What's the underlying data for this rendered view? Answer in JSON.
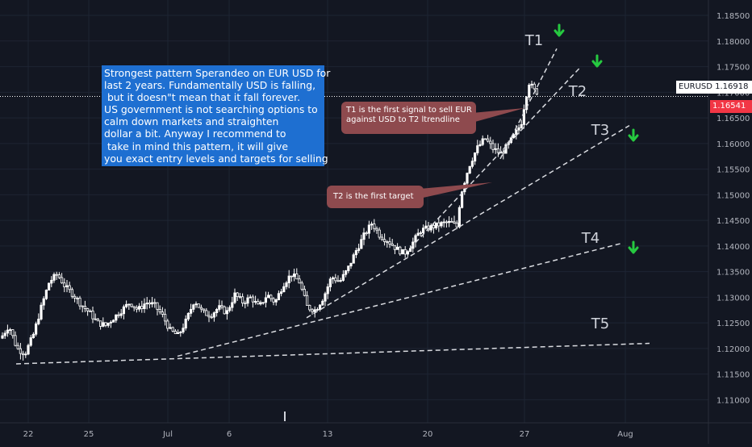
{
  "chart_data": {
    "type": "candlestick",
    "symbol": "EURUSD",
    "current_price": "1.16918",
    "red_price_label": "1.16541",
    "y_axis": {
      "ticks": [
        "1.18500",
        "1.18000",
        "1.17500",
        "1.17000",
        "1.16500",
        "1.16000",
        "1.15500",
        "1.15000",
        "1.14500",
        "1.14000",
        "1.13500",
        "1.13000",
        "1.12500",
        "1.12000",
        "1.11500",
        "1.11000"
      ],
      "range": [
        1.1055,
        1.188
      ]
    },
    "x_axis": {
      "ticks": [
        "22",
        "25",
        "Jul",
        "6",
        "13",
        "20",
        "27",
        "Aug"
      ]
    },
    "price_path": [
      [
        0,
        1.122
      ],
      [
        10,
        1.1245
      ],
      [
        20,
        1.12
      ],
      [
        30,
        1.119
      ],
      [
        40,
        1.1225
      ],
      [
        50,
        1.128
      ],
      [
        60,
        1.133
      ],
      [
        70,
        1.1345
      ],
      [
        80,
        1.132
      ],
      [
        90,
        1.1305
      ],
      [
        100,
        1.1285
      ],
      [
        110,
        1.127
      ],
      [
        120,
        1.125
      ],
      [
        130,
        1.1245
      ],
      [
        140,
        1.126
      ],
      [
        150,
        1.1275
      ],
      [
        160,
        1.129
      ],
      [
        170,
        1.1275
      ],
      [
        180,
        1.129
      ],
      [
        190,
        1.1285
      ],
      [
        200,
        1.1265
      ],
      [
        210,
        1.1235
      ],
      [
        220,
        1.1225
      ],
      [
        230,
        1.1255
      ],
      [
        240,
        1.1295
      ],
      [
        250,
        1.127
      ],
      [
        260,
        1.1265
      ],
      [
        270,
        1.128
      ],
      [
        280,
        1.127
      ],
      [
        290,
        1.1305
      ],
      [
        300,
        1.129
      ],
      [
        310,
        1.13
      ],
      [
        320,
        1.128
      ],
      [
        330,
        1.1305
      ],
      [
        340,
        1.129
      ],
      [
        350,
        1.1325
      ],
      [
        360,
        1.1345
      ],
      [
        370,
        1.133
      ],
      [
        380,
        1.128
      ],
      [
        390,
        1.1275
      ],
      [
        400,
        1.13
      ],
      [
        410,
        1.134
      ],
      [
        420,
        1.133
      ],
      [
        430,
        1.1355
      ],
      [
        440,
        1.139
      ],
      [
        450,
        1.142
      ],
      [
        460,
        1.1445
      ],
      [
        470,
        1.142
      ],
      [
        480,
        1.141
      ],
      [
        490,
        1.1395
      ],
      [
        500,
        1.1385
      ],
      [
        510,
        1.1405
      ],
      [
        520,
        1.143
      ],
      [
        530,
        1.1435
      ],
      [
        540,
        1.144
      ],
      [
        550,
        1.1445
      ],
      [
        560,
        1.1445
      ],
      [
        565,
        1.1435
      ],
      [
        570,
        1.15
      ],
      [
        580,
        1.1555
      ],
      [
        590,
        1.159
      ],
      [
        600,
        1.161
      ],
      [
        610,
        1.159
      ],
      [
        620,
        1.158
      ],
      [
        630,
        1.16
      ],
      [
        640,
        1.1625
      ],
      [
        645,
        1.164
      ],
      [
        650,
        1.1685
      ],
      [
        655,
        1.172
      ],
      [
        660,
        1.1705
      ],
      [
        665,
        1.17
      ]
    ],
    "trendlines": [
      {
        "label": "T1",
        "from": [
          620,
          1.157
        ],
        "to": [
          690,
          1.1785
        ]
      },
      {
        "label": "T2",
        "from": [
          508,
          1.1395
        ],
        "to": [
          720,
          1.175
        ]
      },
      {
        "label": "T3",
        "from": [
          380,
          1.126
        ],
        "to": [
          780,
          1.1635
        ]
      },
      {
        "label": "T4",
        "from": [
          220,
          1.1185
        ],
        "to": [
          770,
          1.1405
        ]
      },
      {
        "label": "T5",
        "from": [
          20,
          1.117
        ],
        "to": [
          805,
          1.121
        ]
      }
    ],
    "target_labels": [
      {
        "text": "T1",
        "x": 662,
        "y": 48
      },
      {
        "text": "T2",
        "x": 716,
        "y": 111
      },
      {
        "text": "T3",
        "x": 744,
        "y": 159
      },
      {
        "text": "T4",
        "x": 732,
        "y": 293
      },
      {
        "text": "T5",
        "x": 744,
        "y": 399
      }
    ],
    "down_arrows": [
      [
        693,
        38
      ],
      [
        740,
        76
      ],
      [
        785,
        168
      ],
      [
        785,
        307
      ]
    ],
    "annotations": {
      "main": "Strongest pattern Sperandeo on EUR USD for\nlast 2 years. Fundamentally USD is falling,\n but it doesn\"t mean that it fall forever.\nUS government is not searching options to\ncalm down markets and straighten\ndollar a bit. Anyway I recommend to\n take in mind this pattern, it will give\nyou exact entry levels and targets for selling",
      "t1_callout": "T1 is the first signal to sell EUR\nagainst USD to T2 ltrendline",
      "t2_callout": "T2 is the first target"
    }
  },
  "colors": {
    "background": "#131722",
    "grid": "#1e2433",
    "candle_up": "#ffffff",
    "candle_down": "#ffffff",
    "trendline": "#d9dbe0",
    "arrow": "#26c940",
    "note_blue": "#1e6fd1",
    "note_red": "#8e4a4e",
    "axis_text": "#b2b5be"
  }
}
